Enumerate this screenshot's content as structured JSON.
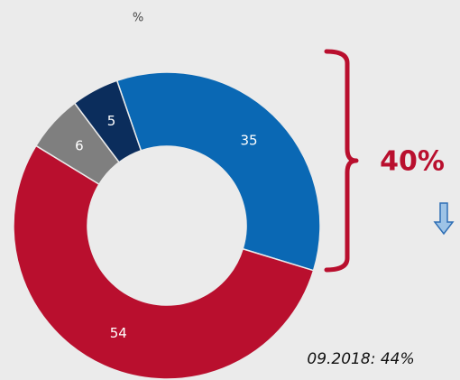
{
  "chart_data": {
    "type": "donut",
    "unit": "%",
    "values": [
      35,
      54,
      6,
      5
    ],
    "colors": [
      "#0a68b4",
      "#b90f2e",
      "#7f7f7f",
      "#0b2d5c"
    ],
    "annotations": [
      "40%",
      "09.2018: 44%"
    ]
  }
}
